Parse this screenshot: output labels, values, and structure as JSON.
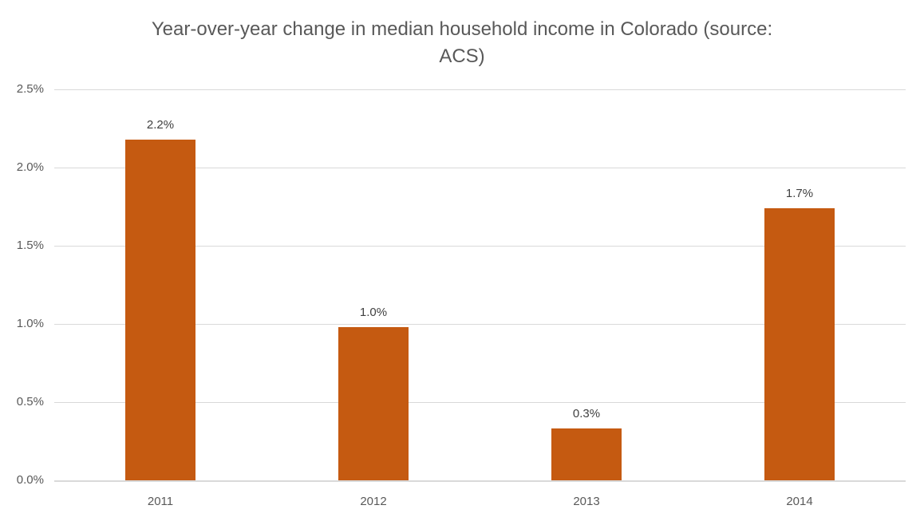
{
  "chart_data": {
    "type": "bar",
    "title": "Year-over-year change in median household income in Colorado (source: ACS)",
    "title_lines": [
      "Year-over-year change in median household income in Colorado (source:",
      "ACS)"
    ],
    "categories": [
      "2011",
      "2012",
      "2013",
      "2014"
    ],
    "values": [
      2.18,
      0.98,
      0.33,
      1.74
    ],
    "data_labels": [
      "2.2%",
      "1.0%",
      "0.3%",
      "1.7%"
    ],
    "xlabel": "",
    "ylabel": "",
    "ylim": [
      0,
      2.5
    ],
    "ytick_step": 0.5,
    "ytick_labels": [
      "0.0%",
      "0.5%",
      "1.0%",
      "1.5%",
      "2.0%",
      "2.5%"
    ],
    "grid": true,
    "legend": "none",
    "colors": {
      "bar": "#C55A11",
      "gridline": "#D9D9D9",
      "axis_line": "#D9D9D9",
      "title_text": "#595959",
      "axis_text": "#595959",
      "data_label_text": "#404040",
      "background": "#FFFFFF"
    }
  }
}
